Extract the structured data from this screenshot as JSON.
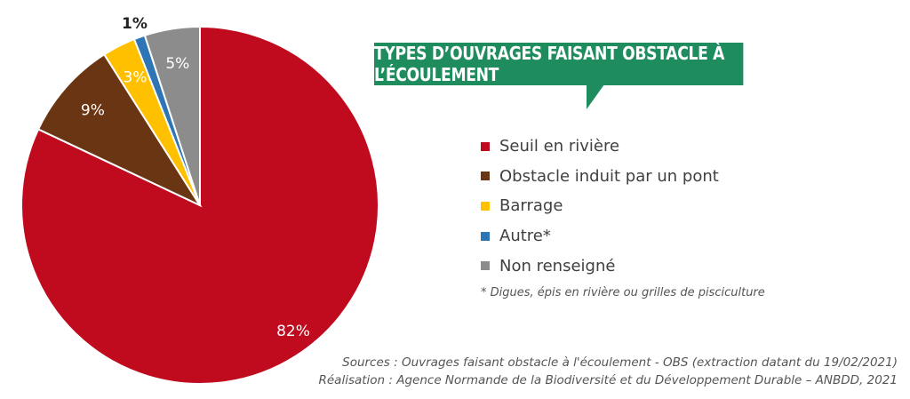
{
  "chart_data": {
    "type": "pie",
    "title": "TYPES D’OUVRAGES FAISANT OBSTACLE À L’ÉCOULEMENT",
    "slices": [
      {
        "name": "Seuil en rivière",
        "value": 82,
        "label": "82%",
        "color": "#c00a1e"
      },
      {
        "name": "Obstacle induit par un pont",
        "value": 9,
        "label": "9%",
        "color": "#6a3512"
      },
      {
        "name": "Barrage",
        "value": 3,
        "label": "3%",
        "color": "#ffc000"
      },
      {
        "name": "Autre*",
        "value": 1,
        "label": "1%",
        "color": "#2e75b6"
      },
      {
        "name": "Non renseigné",
        "value": 5,
        "label": "5%",
        "color": "#8c8c8c"
      }
    ],
    "legend_placement": "right",
    "footnote": "* Digues, épis en rivière ou grilles de pisciculture"
  },
  "sources": {
    "line1": "Sources : Ouvrages faisant obstacle à l'écoulement - OBS (extraction datant du 19/02/2021)",
    "line2": "Réalisation : Agence Normande de la Biodiversité et du Développement Durable – ANBDD, 2021"
  },
  "colors": {
    "banner": "#1f8c5e"
  }
}
